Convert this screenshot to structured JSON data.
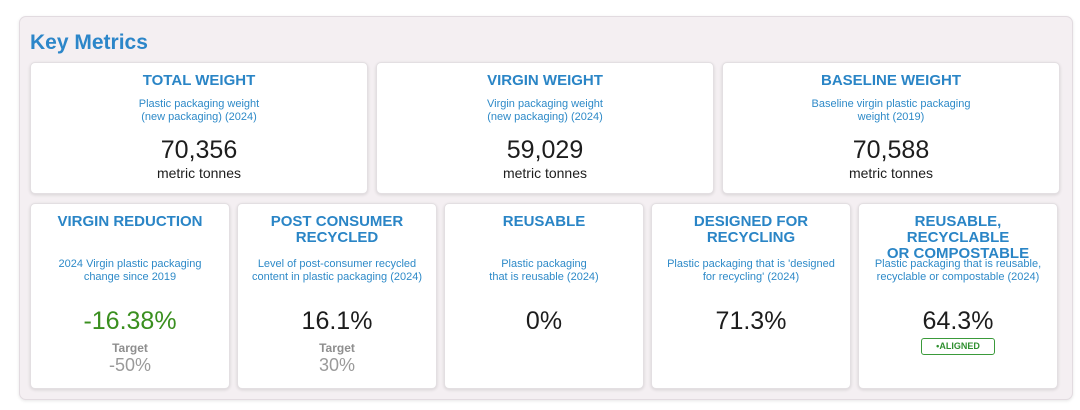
{
  "panel": {
    "title": "Key Metrics"
  },
  "cards_top": [
    {
      "title": "TOTAL WEIGHT",
      "subtitle": "Plastic packaging weight\n(new packaging) (2024)",
      "value": "70,356",
      "unit": "metric tonnes"
    },
    {
      "title": "VIRGIN WEIGHT",
      "subtitle": "Virgin packaging weight\n(new packaging) (2024)",
      "value": "59,029",
      "unit": "metric tonnes"
    },
    {
      "title": "BASELINE WEIGHT",
      "subtitle": "Baseline virgin plastic packaging\nweight (2019)",
      "value": "70,588",
      "unit": "metric tonnes"
    }
  ],
  "cards_bottom": [
    {
      "title": "VIRGIN REDUCTION",
      "subtitle": "2024 Virgin plastic packaging\nchange since 2019",
      "value": "-16.38%",
      "target_label": "Target",
      "target_value": "-50%"
    },
    {
      "title": "POST CONSUMER\nRECYCLED",
      "subtitle": "Level of post-consumer recycled\ncontent in plastic packaging (2024)",
      "value": "16.1%",
      "target_label": "Target",
      "target_value": "30%"
    },
    {
      "title": "REUSABLE",
      "subtitle": "Plastic packaging\nthat is reusable (2024)",
      "value": "0%"
    },
    {
      "title": "DESIGNED FOR\nRECYCLING",
      "subtitle": "Plastic packaging that is 'designed\nfor recycling' (2024)",
      "value": "71.3%"
    },
    {
      "title": "REUSABLE, RECYCLABLE\nOR COMPOSTABLE",
      "subtitle": "Plastic packaging that is reusable,\nrecyclable or compostable (2024)",
      "value": "64.3%",
      "badge": "•ALIGNED"
    }
  ],
  "colors": {
    "accent": "#2c86c9",
    "positive": "#3a8f1f",
    "badge": "#2f8f2f",
    "panel_bg": "#f4eff2"
  }
}
